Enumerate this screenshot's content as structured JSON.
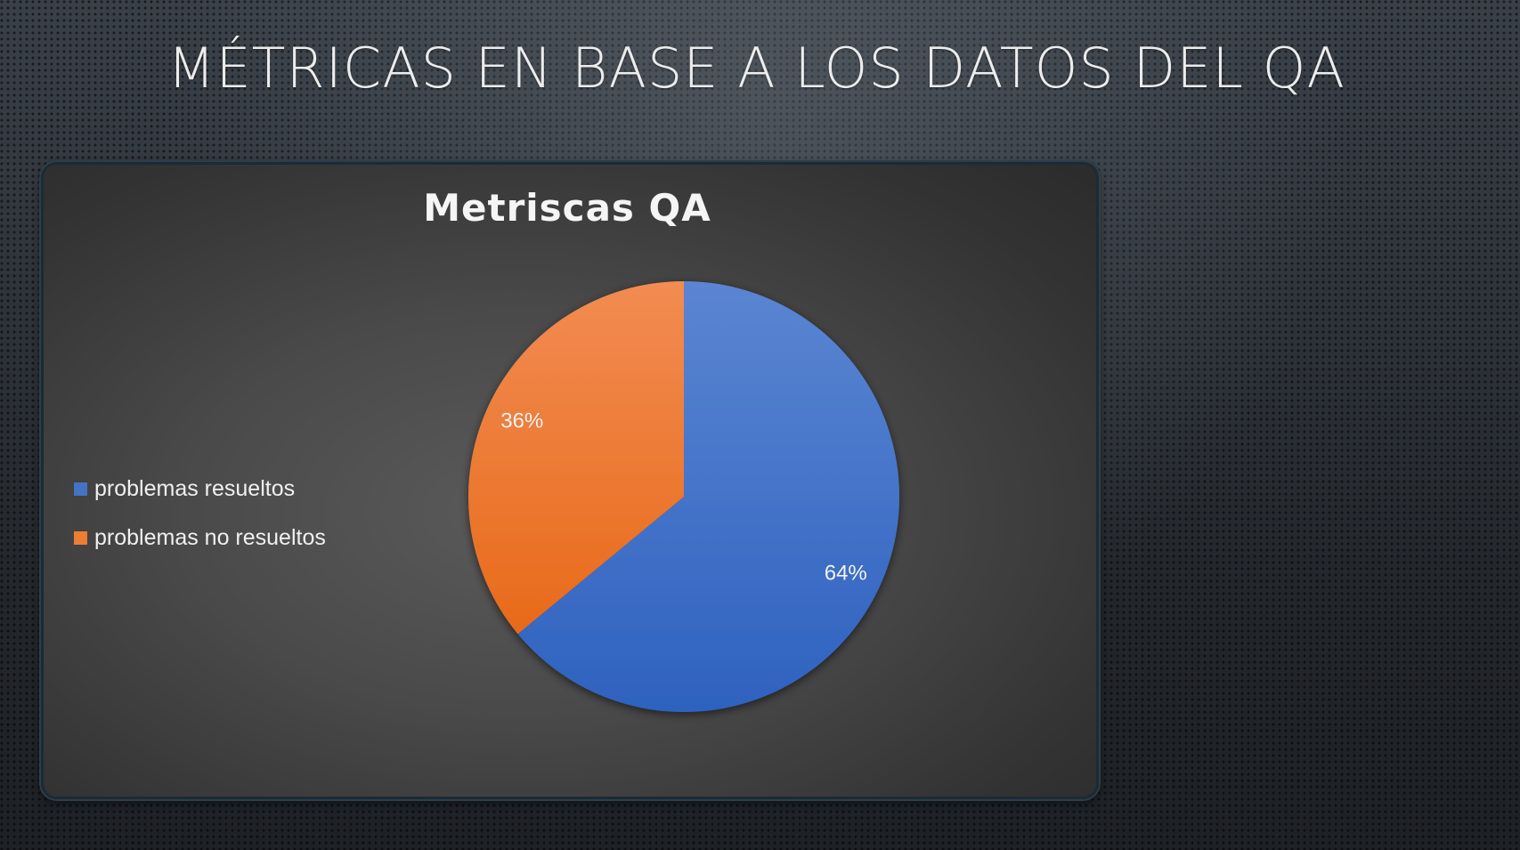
{
  "slide": {
    "title": "MÉTRICAS EN BASE A LOS DATOS DEL QA"
  },
  "chart_data": {
    "type": "pie",
    "title": "Metriscas QA",
    "categories": [
      "problemas resueltos",
      "problemas no resueltos"
    ],
    "values": [
      64,
      36
    ],
    "labels": [
      "64%",
      "36%"
    ],
    "colors": [
      "#4472c4",
      "#ed7d31"
    ],
    "legend_position": "left"
  }
}
